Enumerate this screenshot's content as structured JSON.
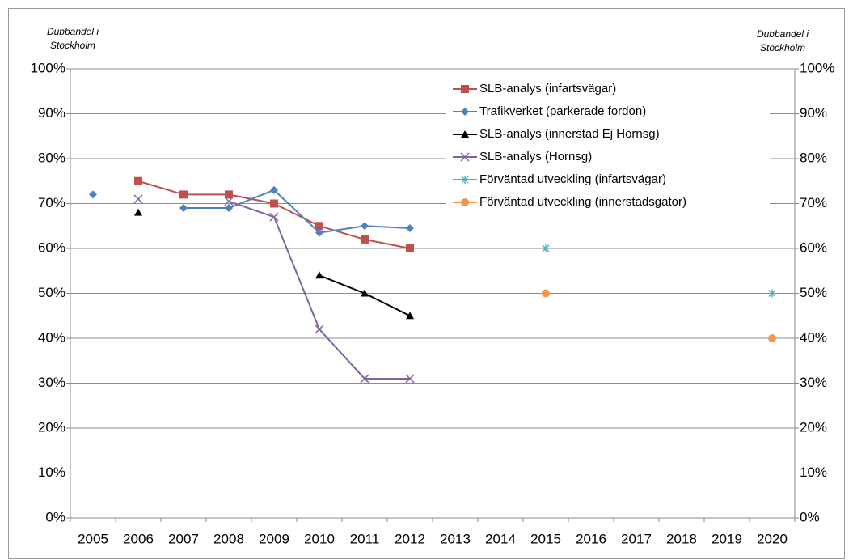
{
  "chart_data": {
    "type": "line",
    "y_label": [
      "Dubbandel i",
      "Stockholm"
    ],
    "y2_label": [
      "Dubbandel i",
      "Stockholm"
    ],
    "categories": [
      "2005",
      "2006",
      "2007",
      "2008",
      "2009",
      "2010",
      "2011",
      "2012",
      "2013",
      "2014",
      "2015",
      "2016",
      "2017",
      "2018",
      "2019",
      "2020"
    ],
    "series": [
      {
        "name": "SLB-analys (infartsvägar)",
        "color": "#c0504d",
        "marker": "square",
        "values": [
          null,
          75,
          72,
          72,
          70,
          65,
          62,
          60,
          null,
          null,
          null,
          null,
          null,
          null,
          null,
          null
        ]
      },
      {
        "name": "Trafikverket (parkerade fordon)",
        "color": "#4f81bd",
        "marker": "diamond",
        "values": [
          72,
          null,
          69,
          69,
          73,
          63.5,
          65,
          64.5,
          null,
          null,
          null,
          null,
          null,
          null,
          null,
          null
        ]
      },
      {
        "name": "SLB-analys (innerstad Ej Hornsg)",
        "color": "#000000",
        "marker": "triangle",
        "values": [
          null,
          68,
          null,
          null,
          null,
          54,
          50,
          45,
          null,
          null,
          null,
          null,
          null,
          null,
          null,
          null
        ]
      },
      {
        "name": "SLB-analys (Hornsg)",
        "color": "#8064a2",
        "marker": "x",
        "values": [
          null,
          71,
          null,
          70.5,
          67,
          42,
          31,
          31,
          null,
          null,
          null,
          null,
          null,
          null,
          null,
          null
        ]
      },
      {
        "name": "Förväntad utveckling (infartsvägar)",
        "color": "#4bacc6",
        "marker": "star",
        "values": [
          null,
          null,
          null,
          null,
          null,
          null,
          null,
          null,
          null,
          null,
          60,
          null,
          null,
          null,
          null,
          50
        ]
      },
      {
        "name": "Förväntad utveckling (innerstadsgator)",
        "color": "#f79646",
        "marker": "circle",
        "values": [
          null,
          null,
          null,
          null,
          null,
          null,
          null,
          null,
          null,
          null,
          50,
          null,
          null,
          null,
          null,
          40
        ]
      }
    ],
    "ylim": [
      0,
      100
    ],
    "yticks": [
      {
        "value": 0,
        "label": "0%"
      },
      {
        "value": 10,
        "label": "10%"
      },
      {
        "value": 20,
        "label": "20%"
      },
      {
        "value": 30,
        "label": "30%"
      },
      {
        "value": 40,
        "label": "40%"
      },
      {
        "value": 50,
        "label": "50%"
      },
      {
        "value": 60,
        "label": "60%"
      },
      {
        "value": 70,
        "label": "70%"
      },
      {
        "value": 80,
        "label": "80%"
      },
      {
        "value": 90,
        "label": "90%"
      },
      {
        "value": 100,
        "label": "100%"
      }
    ],
    "y2lim": [
      0,
      100
    ],
    "y2ticks": [
      {
        "value": 0,
        "label": "0%"
      },
      {
        "value": 10,
        "label": "10%"
      },
      {
        "value": 20,
        "label": "20%"
      },
      {
        "value": 30,
        "label": "30%"
      },
      {
        "value": 40,
        "label": "40%"
      },
      {
        "value": 50,
        "label": "50%"
      },
      {
        "value": 60,
        "label": "60%"
      },
      {
        "value": 70,
        "label": "70%"
      },
      {
        "value": 80,
        "label": "80%"
      },
      {
        "value": 90,
        "label": "90%"
      },
      {
        "value": 100,
        "label": "100%"
      }
    ],
    "grid": true,
    "legend": "top-right"
  }
}
